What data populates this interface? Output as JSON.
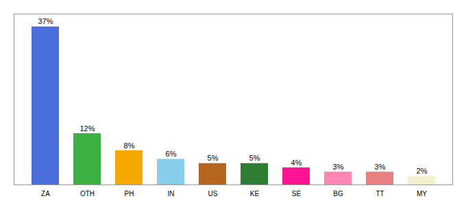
{
  "chart_data": {
    "type": "bar",
    "categories": [
      "ZA",
      "OTH",
      "PH",
      "IN",
      "US",
      "KE",
      "SE",
      "BG",
      "TT",
      "MY"
    ],
    "values": [
      37,
      12,
      8,
      6,
      5,
      5,
      4,
      3,
      3,
      2
    ],
    "value_labels": [
      "37%",
      "12%",
      "8%",
      "6%",
      "5%",
      "5%",
      "4%",
      "3%",
      "3%",
      "2%"
    ],
    "colors": [
      "#4a6fdc",
      "#3cb043",
      "#f5a800",
      "#87ceeb",
      "#b5651d",
      "#2e7d32",
      "#ff1493",
      "#ff85b3",
      "#e88080",
      "#f0f0cc"
    ],
    "ylim": [
      0,
      40
    ],
    "data_labels": true,
    "tick_labels": "x",
    "grid": false
  }
}
